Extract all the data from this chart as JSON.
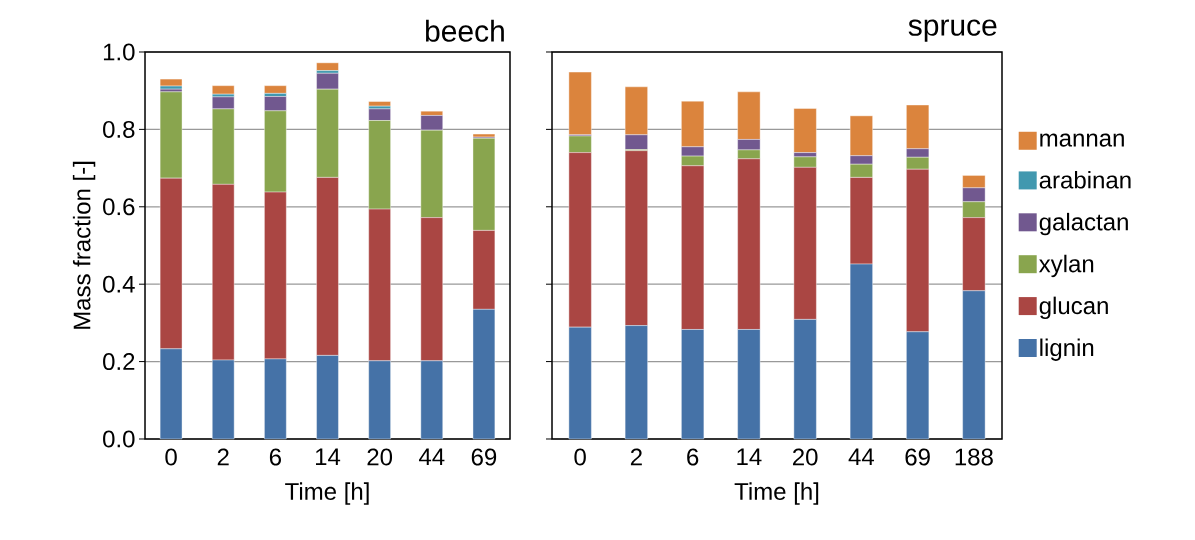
{
  "chart_data": [
    {
      "type": "bar",
      "title": "beech",
      "xlabel": "Time [h]",
      "ylabel": "Mass fraction [-]",
      "stacked": true,
      "grid": "y",
      "categories": [
        "0",
        "2",
        "6",
        "14",
        "20",
        "44",
        "69"
      ],
      "ylim": [
        0,
        1
      ],
      "yticks": [
        {
          "value": 0,
          "label": "0.0"
        },
        {
          "value": 0.2,
          "label": "0.2"
        },
        {
          "value": 0.4,
          "label": "0.4"
        },
        {
          "value": 0.6,
          "label": "0.6"
        },
        {
          "value": 0.8,
          "label": "0.8"
        },
        {
          "value": 1,
          "label": "1.0"
        }
      ],
      "series": [
        {
          "color": "#4572a7",
          "values": [
            0.233,
            0.204,
            0.207,
            0.216,
            0.202,
            0.202,
            0.335
          ]
        },
        {
          "color": "#aa4643",
          "values": [
            0.441,
            0.454,
            0.431,
            0.46,
            0.392,
            0.37,
            0.204
          ]
        },
        {
          "color": "#89a54e",
          "values": [
            0.223,
            0.195,
            0.21,
            0.228,
            0.229,
            0.226,
            0.238
          ]
        },
        {
          "color": "#71588f",
          "values": [
            0.007,
            0.031,
            0.037,
            0.041,
            0.03,
            0.038,
            0.003
          ]
        },
        {
          "color": "#4198af",
          "values": [
            0.008,
            0.007,
            0.008,
            0.007,
            0.007,
            null,
            null
          ]
        },
        {
          "color": "#db843d",
          "values": [
            0.018,
            0.022,
            0.02,
            0.02,
            0.012,
            0.011,
            0.008
          ]
        }
      ]
    },
    {
      "type": "bar",
      "title": "spruce",
      "xlabel": "Time [h]",
      "stacked": true,
      "grid": "y",
      "legend": "right",
      "tick_labels": "x",
      "categories": [
        "0",
        "2",
        "6",
        "14",
        "20",
        "44",
        "69",
        "188"
      ],
      "ylim": [
        0,
        1
      ],
      "yticks": [
        {
          "value": 0,
          "label": null
        },
        {
          "value": 0.2,
          "label": null
        },
        {
          "value": 0.4,
          "label": null
        },
        {
          "value": 0.6,
          "label": null
        },
        {
          "value": 0.8,
          "label": null
        },
        {
          "value": 1,
          "label": null
        }
      ],
      "series": [
        {
          "name": "lignin",
          "color": "#4572a7",
          "values": [
            0.289,
            0.293,
            0.283,
            0.283,
            0.309,
            0.452,
            0.277,
            0.383
          ]
        },
        {
          "name": "glucan",
          "color": "#aa4643",
          "values": [
            0.451,
            0.452,
            0.423,
            0.441,
            0.393,
            0.224,
            0.42,
            0.189
          ]
        },
        {
          "name": "xylan",
          "color": "#89a54e",
          "values": [
            0.043,
            0.003,
            0.025,
            0.023,
            0.027,
            0.034,
            0.031,
            0.041
          ]
        },
        {
          "name": "galactan",
          "color": "#71588f",
          "values": [
            0.003,
            0.038,
            0.024,
            0.027,
            0.011,
            0.022,
            0.022,
            0.036
          ]
        },
        {
          "name": "arabinan",
          "color": "#4198af",
          "values": [
            0,
            0,
            0,
            0,
            0,
            0,
            0,
            0
          ]
        },
        {
          "name": "mannan",
          "color": "#db843d",
          "values": [
            0.162,
            0.124,
            0.118,
            0.123,
            0.114,
            0.103,
            0.113,
            0.032
          ]
        }
      ]
    }
  ]
}
